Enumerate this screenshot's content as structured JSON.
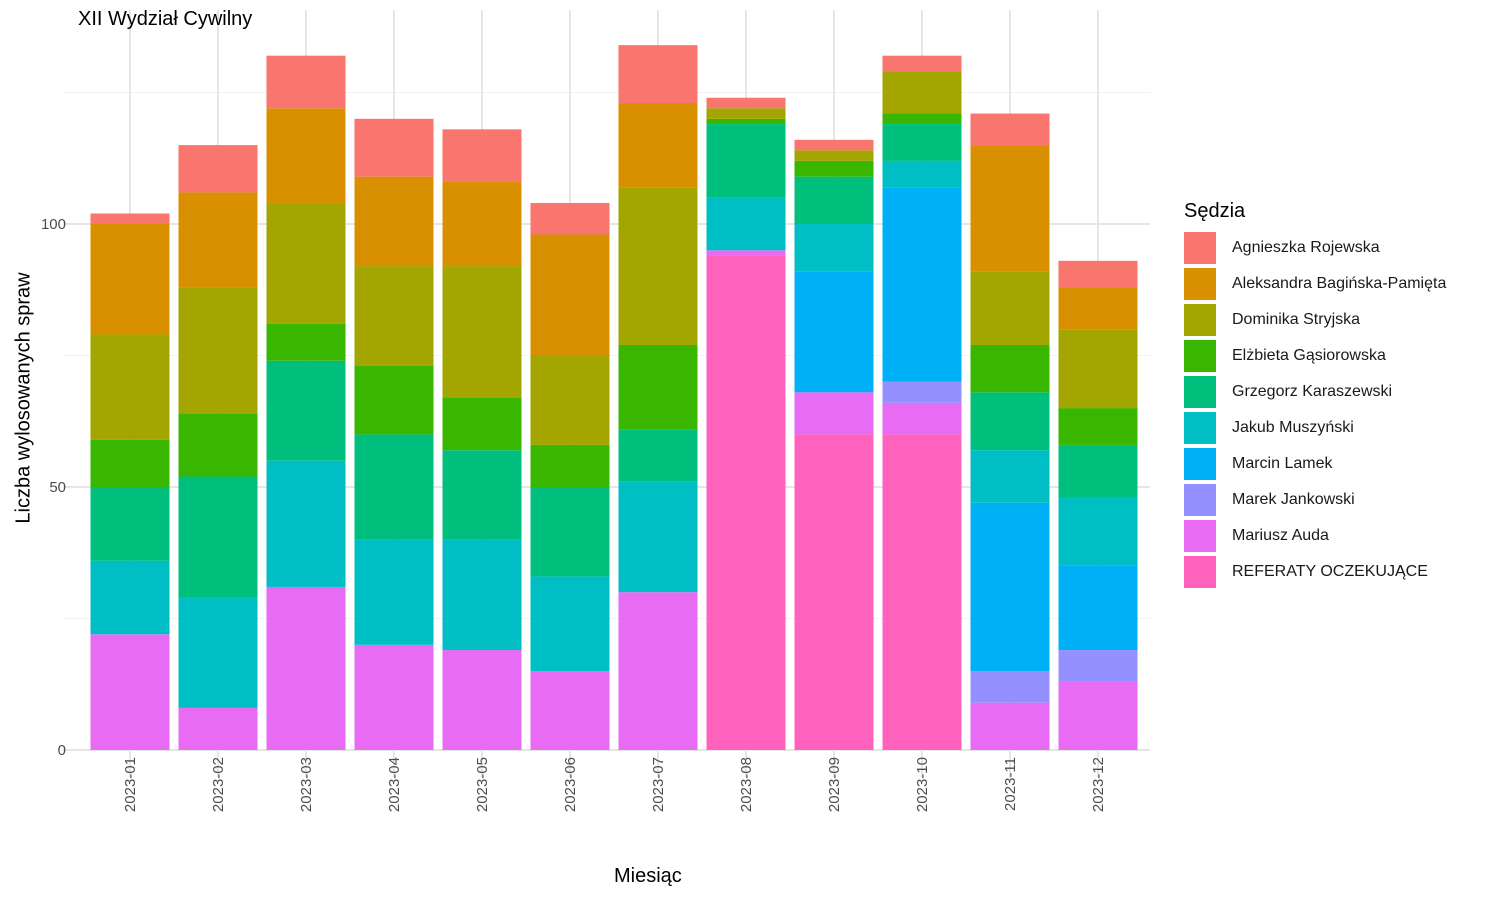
{
  "chart_data": {
    "type": "bar",
    "stacked": true,
    "title": "XII Wydział Cywilny",
    "xlabel": "Miesiąc",
    "ylabel": "Liczba wylosowanych spraw",
    "ylim": [
      0,
      140
    ],
    "yticks": [
      0,
      50,
      100
    ],
    "grid": true,
    "legend_title": "Sędzia",
    "legend_position": "right",
    "categories": [
      "2023-01",
      "2023-02",
      "2023-03",
      "2023-04",
      "2023-05",
      "2023-06",
      "2023-07",
      "2023-08",
      "2023-09",
      "2023-10",
      "2023-11",
      "2023-12"
    ],
    "series": [
      {
        "name": "Agnieszka Rojewska",
        "color": "#F8766D",
        "values": [
          2,
          9,
          10,
          11,
          10,
          6,
          11,
          2,
          2,
          3,
          6,
          5
        ]
      },
      {
        "name": "Aleksandra Bagińska-Pamięta",
        "color": "#D89000",
        "values": [
          21,
          18,
          18,
          17,
          16,
          23,
          16,
          0,
          0,
          0,
          24,
          8
        ]
      },
      {
        "name": "Dominika Stryjska",
        "color": "#A3A500",
        "values": [
          20,
          24,
          23,
          19,
          25,
          17,
          30,
          2,
          2,
          8,
          14,
          15
        ]
      },
      {
        "name": "Elżbieta Gąsiorowska",
        "color": "#39B600",
        "values": [
          9,
          12,
          7,
          13,
          10,
          8,
          16,
          1,
          3,
          2,
          9,
          7
        ]
      },
      {
        "name": "Grzegorz Karaszewski",
        "color": "#00BF7D",
        "values": [
          14,
          23,
          19,
          20,
          17,
          17,
          10,
          14,
          9,
          7,
          11,
          10
        ]
      },
      {
        "name": "Jakub Muszyński",
        "color": "#00BFC4",
        "values": [
          14,
          21,
          24,
          20,
          21,
          18,
          21,
          10,
          9,
          5,
          10,
          13
        ]
      },
      {
        "name": "Marcin Lamek",
        "color": "#00B0F6",
        "values": [
          0,
          0,
          0,
          0,
          0,
          0,
          0,
          0,
          23,
          37,
          32,
          16
        ]
      },
      {
        "name": "Marek Jankowski",
        "color": "#9590FF",
        "values": [
          0,
          0,
          0,
          0,
          0,
          0,
          0,
          0,
          0,
          4,
          6,
          6
        ]
      },
      {
        "name": "Mariusz Auda",
        "color": "#E76BF3",
        "values": [
          22,
          8,
          31,
          20,
          19,
          15,
          30,
          1,
          8,
          6,
          9,
          13
        ]
      },
      {
        "name": "REFERATY OCZEKUJĄCE",
        "color": "#FF62BC",
        "values": [
          0,
          0,
          0,
          0,
          0,
          0,
          0,
          94,
          60,
          60,
          0,
          0
        ]
      }
    ]
  }
}
